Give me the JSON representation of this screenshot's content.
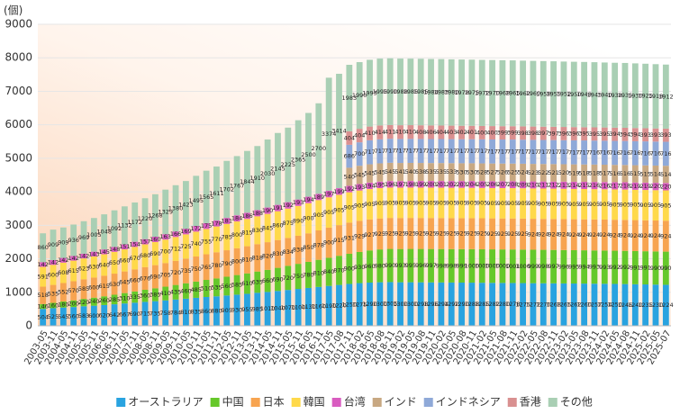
{
  "chart_data": {
    "type": "stacked_bar",
    "y_label": "(個)",
    "ylim": [
      0,
      9000
    ],
    "yticks": [
      0,
      1000,
      2000,
      3000,
      4000,
      5000,
      6000,
      7000,
      8000,
      9000
    ],
    "grid": true,
    "legend": "bottom",
    "categories": [
      "2003-05",
      "2003-11",
      "2004-05",
      "2004-11",
      "2005-05",
      "2005-11",
      "2006-05",
      "2006-11",
      "2007-05",
      "2007-11",
      "2008-05",
      "2008-11",
      "2009-05",
      "2009-11",
      "2010-05",
      "2010-11",
      "2011-05",
      "2011-11",
      "2012-05",
      "2012-11",
      "2013-05",
      "2013-11",
      "2014-05",
      "2014-11",
      "2015-05",
      "2015-11",
      "2016-05",
      "2016-11",
      "2017-05",
      "2017-08",
      "2017-11",
      "2018-02",
      "2018-05",
      "2018-08",
      "2018-11",
      "2019-02",
      "2019-05",
      "2019-08",
      "2019-11",
      "2020-02",
      "2020-05",
      "2020-08",
      "2020-11",
      "2021-02",
      "2021-05",
      "2021-08",
      "2021-11",
      "2022-02",
      "2022-05",
      "2022-08",
      "2022-11",
      "2023-02",
      "2023-05",
      "2023-08",
      "2023-11",
      "2024-02",
      "2024-05",
      "2024-08",
      "2024-11",
      "2025-02",
      "2025-05",
      "2025-07"
    ],
    "series": [
      {
        "name": "オーストラリア",
        "color": "#29a3e0",
        "values": [
          504,
          525,
          545,
          560,
          583,
          600,
          620,
          642,
          667,
          690,
          715,
          735,
          758,
          784,
          810,
          835,
          860,
          880,
          905,
          930,
          955,
          985,
          1010,
          1040,
          1070,
          1100,
          1130,
          1160,
          1190,
          1220,
          1250,
          1275,
          1290,
          1300,
          1305,
          1300,
          1300,
          1298,
          1296,
          1294,
          1292,
          1290,
          1288,
          1285,
          1282,
          1280,
          1278,
          1275,
          1272,
          1270,
          1268,
          1265,
          1262,
          1260,
          1257,
          1254,
          1250,
          1246,
          1240,
          1235,
          1230,
          1224
        ]
      },
      {
        "name": "中国",
        "color": "#66c82a",
        "values": [
          146,
          160,
          180,
          200,
          220,
          240,
          260,
          285,
          310,
          335,
          360,
          385,
          410,
          435,
          460,
          485,
          510,
          535,
          560,
          585,
          610,
          635,
          660,
          690,
          720,
          750,
          780,
          810,
          840,
          870,
          900,
          930,
          960,
          980,
          990,
          993,
          995,
          996,
          997,
          998,
          998,
          999,
          1000,
          1000,
          1000,
          1000,
          1001,
          1000,
          999,
          998,
          997,
          996,
          995,
          994,
          993,
          993,
          992,
          992,
          991,
          991,
          990,
          990
        ]
      },
      {
        "name": "日本",
        "color": "#f7a450",
        "values": [
          518,
          535,
          552,
          570,
          585,
          600,
          615,
          630,
          645,
          660,
          676,
          690,
          705,
          720,
          735,
          750,
          765,
          780,
          790,
          800,
          810,
          818,
          826,
          830,
          834,
          838,
          850,
          878,
          900,
          915,
          931,
          929,
          927,
          925,
          925,
          925,
          925,
          925,
          925,
          925,
          925,
          925,
          925,
          925,
          925,
          925,
          925,
          925,
          924,
          924,
          924,
          924,
          924,
          924,
          924,
          924,
          924,
          924,
          924,
          924,
          924,
          924
        ]
      },
      {
        "name": "韓国",
        "color": "#ffd94a",
        "values": [
          591,
          600,
          608,
          615,
          623,
          630,
          640,
          650,
          660,
          670,
          680,
          690,
          700,
          712,
          725,
          740,
          755,
          770,
          785,
          800,
          815,
          830,
          845,
          860,
          875,
          890,
          900,
          905,
          905,
          905,
          905,
          905,
          905,
          905,
          905,
          905,
          905,
          905,
          905,
          905,
          905,
          905,
          905,
          905,
          905,
          905,
          905,
          905,
          905,
          905,
          905,
          905,
          905,
          905,
          905,
          905,
          905,
          905,
          905,
          905,
          905,
          905
        ]
      },
      {
        "name": "台湾",
        "color": "#d95cc0",
        "values": [
          142,
          142,
          142,
          142,
          142,
          143,
          145,
          148,
          151,
          154,
          157,
          160,
          163,
          166,
          169,
          172,
          175,
          178,
          181,
          184,
          186,
          188,
          190,
          191,
          192,
          193,
          194,
          189,
          197,
          199,
          192,
          193,
          194,
          195,
          196,
          197,
          198,
          199,
          200,
          201,
          202,
          203,
          204,
          205,
          206,
          207,
          208,
          209,
          210,
          211,
          212,
          213,
          214,
          215,
          216,
          216,
          217,
          218,
          219,
          219,
          220,
          220
        ]
      },
      {
        "name": "インド",
        "color": "#c8a882",
        "values": [
          null,
          null,
          null,
          null,
          null,
          null,
          null,
          null,
          null,
          null,
          null,
          null,
          null,
          null,
          null,
          null,
          null,
          null,
          null,
          null,
          null,
          null,
          null,
          null,
          null,
          null,
          null,
          null,
          null,
          null,
          540,
          545,
          545,
          545,
          545,
          541,
          540,
          538,
          535,
          535,
          533,
          530,
          530,
          528,
          527,
          526,
          525,
          524,
          523,
          522,
          521,
          520,
          519,
          518,
          518,
          517,
          516,
          516,
          515,
          515,
          514,
          514
        ]
      },
      {
        "name": "インドネシア",
        "color": "#8fa9d8",
        "values": [
          null,
          null,
          null,
          null,
          null,
          null,
          null,
          null,
          null,
          null,
          null,
          null,
          null,
          null,
          null,
          null,
          null,
          null,
          null,
          null,
          null,
          null,
          null,
          null,
          null,
          null,
          null,
          null,
          null,
          null,
          686,
          700,
          717,
          717,
          717,
          717,
          717,
          717,
          717,
          717,
          717,
          717,
          717,
          717,
          717,
          717,
          717,
          717,
          717,
          717,
          717,
          717,
          717,
          717,
          716,
          716,
          716,
          716,
          716,
          716,
          716,
          716
        ]
      },
      {
        "name": "香港",
        "color": "#d99090",
        "values": [
          null,
          null,
          null,
          null,
          null,
          null,
          null,
          null,
          null,
          null,
          null,
          null,
          null,
          null,
          null,
          null,
          null,
          null,
          null,
          null,
          null,
          null,
          null,
          null,
          null,
          null,
          null,
          null,
          null,
          null,
          404,
          404,
          410,
          414,
          411,
          410,
          410,
          408,
          406,
          404,
          403,
          402,
          401,
          400,
          400,
          399,
          399,
          398,
          398,
          397,
          397,
          396,
          396,
          395,
          395,
          395,
          394,
          394,
          394,
          393,
          393,
          393
        ]
      },
      {
        "name": "その他",
        "color": "#a9cfb4",
        "values": [
          860,
          909,
          909,
          936,
          969,
          1005,
          1048,
          1092,
          1132,
          1172,
          1220,
          1268,
          1329,
          1380,
          1423,
          1495,
          1565,
          1611,
          1702,
          1767,
          1844,
          1910,
          2030,
          2145,
          2225,
          2365,
          2500,
          2700,
          3374,
          3414,
          1983,
          1990,
          1993,
          1995,
          1990,
          1988,
          1985,
          1985,
          1984,
          1983,
          1980,
          1978,
          1975,
          1972,
          1970,
          1968,
          1965,
          1962,
          1960,
          1958,
          1955,
          1952,
          1950,
          1948,
          1945,
          1940,
          1938,
          1935,
          1930,
          1925,
          1918,
          1912
        ]
      }
    ]
  }
}
